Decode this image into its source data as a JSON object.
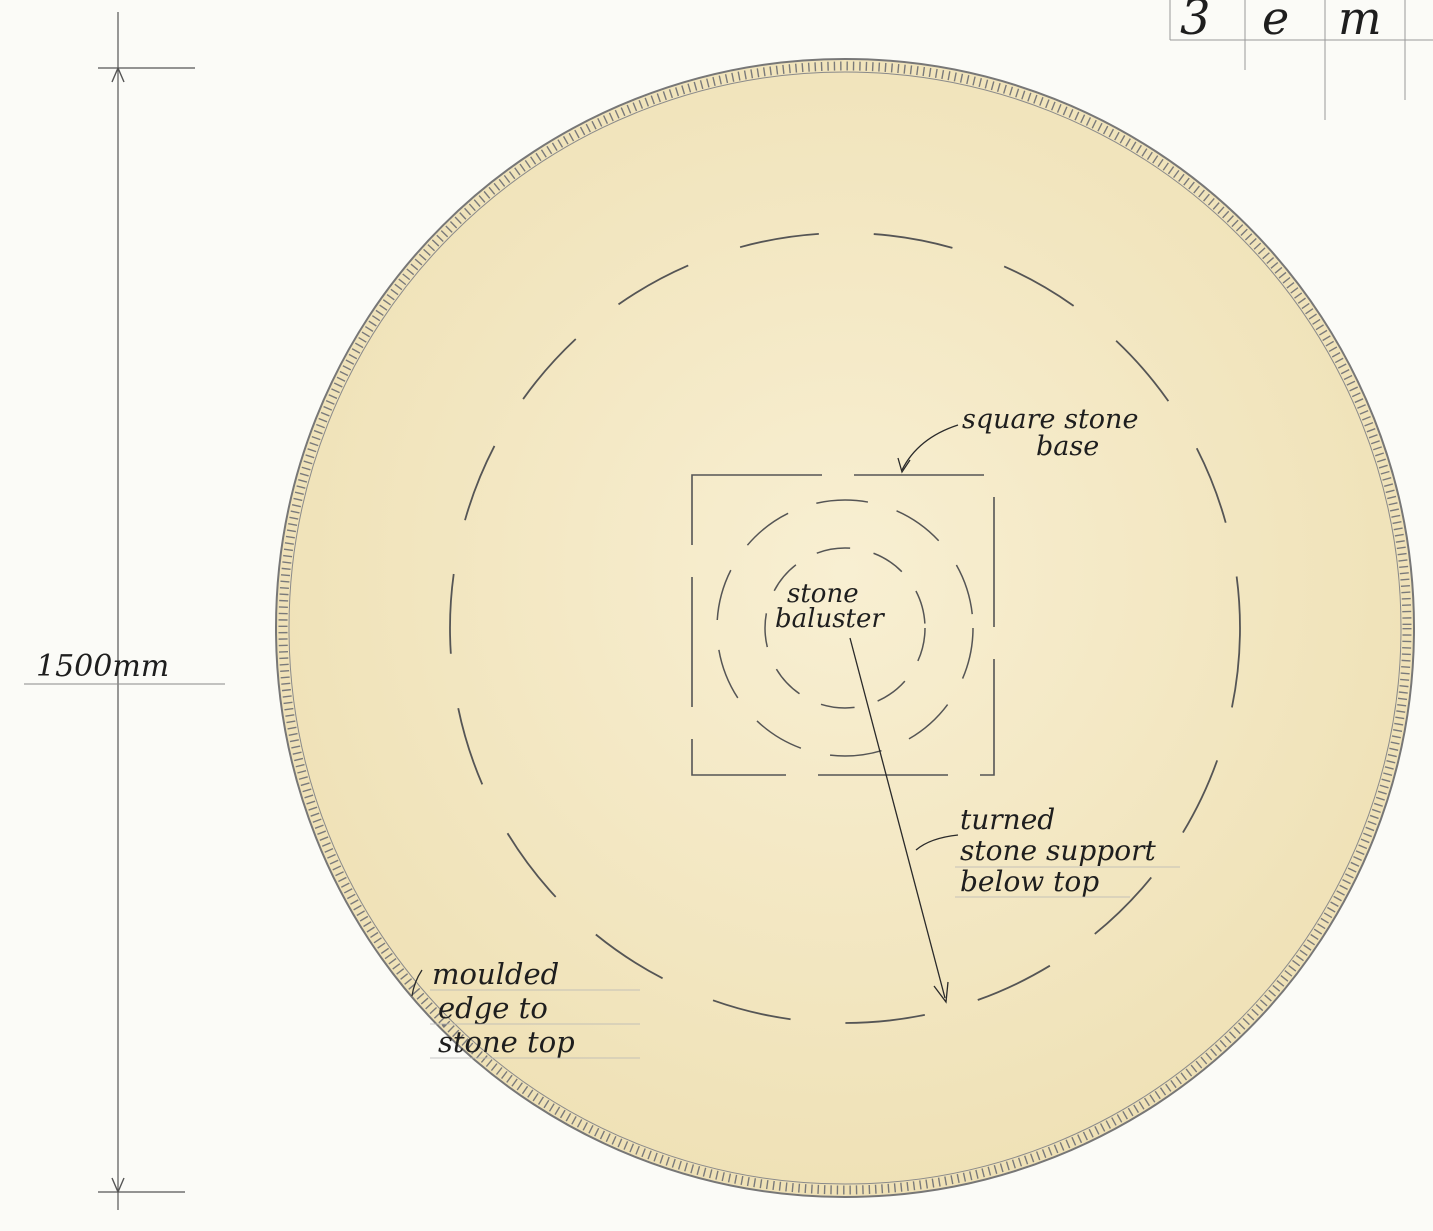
{
  "title_block": {
    "chars": [
      "3",
      "e",
      "m"
    ]
  },
  "dimension": {
    "label": "1500mm"
  },
  "labels": {
    "square_base": [
      "square stone",
      "base"
    ],
    "baluster": [
      "stone",
      "baluster"
    ],
    "support": [
      "turned",
      "stone support",
      "below top"
    ],
    "edge": [
      "moulded",
      "edge to",
      "stone top"
    ]
  },
  "colors": {
    "paper": "#fbfbf7",
    "stone_fill": "#f3e7c2",
    "pencil": "#6e6e6e",
    "ink": "#1e1e1e"
  }
}
